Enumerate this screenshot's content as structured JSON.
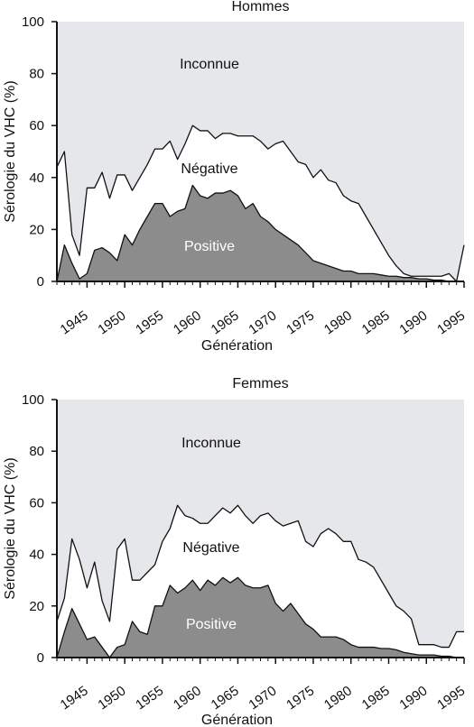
{
  "chart_data": [
    {
      "type": "area",
      "title": "Hommes",
      "xlabel": "Génération",
      "ylabel": "Sérologie du VHC (%)",
      "xlim": [
        1941,
        1995
      ],
      "ylim": [
        0,
        100
      ],
      "yticks": [
        0,
        20,
        40,
        60,
        80,
        100
      ],
      "xticks": [
        1945,
        1950,
        1955,
        1960,
        1965,
        1970,
        1975,
        1980,
        1985,
        1990,
        1995
      ],
      "grid": false,
      "area_labels": {
        "unknown": "Inconnue",
        "negative": "Négative",
        "positive": "Positive"
      },
      "colors": {
        "unknown": "#e6e7ea",
        "negative": "#ffffff",
        "positive": "#8c8c8c"
      },
      "series": [
        {
          "name": "Positive",
          "x": [
            1941,
            1942,
            1943,
            1944,
            1945,
            1946,
            1947,
            1948,
            1949,
            1950,
            1951,
            1952,
            1953,
            1954,
            1955,
            1956,
            1957,
            1958,
            1959,
            1960,
            1961,
            1962,
            1963,
            1964,
            1965,
            1966,
            1967,
            1968,
            1969,
            1970,
            1971,
            1972,
            1973,
            1974,
            1975,
            1976,
            1977,
            1978,
            1979,
            1980,
            1981,
            1982,
            1983,
            1984,
            1985,
            1986,
            1987,
            1988,
            1989,
            1990,
            1991,
            1992,
            1993,
            1994,
            1995
          ],
          "values": [
            0,
            14,
            7,
            1,
            3,
            12,
            13,
            11,
            8,
            18,
            14,
            20,
            25,
            30,
            30,
            25,
            27,
            28,
            37,
            33,
            32,
            34,
            34,
            35,
            33,
            28,
            30,
            25,
            23,
            20,
            18,
            16,
            14,
            11,
            8,
            7,
            6,
            5,
            4,
            4,
            3,
            3,
            3,
            2.5,
            2,
            2,
            1.5,
            1.5,
            1,
            1,
            0.5,
            0.5,
            0,
            0,
            0
          ]
        },
        {
          "name": "Positive+Négative",
          "x": [
            1941,
            1942,
            1943,
            1944,
            1945,
            1946,
            1947,
            1948,
            1949,
            1950,
            1951,
            1952,
            1953,
            1954,
            1955,
            1956,
            1957,
            1958,
            1959,
            1960,
            1961,
            1962,
            1963,
            1964,
            1965,
            1966,
            1967,
            1968,
            1969,
            1970,
            1971,
            1972,
            1973,
            1974,
            1975,
            1976,
            1977,
            1978,
            1979,
            1980,
            1981,
            1982,
            1983,
            1984,
            1985,
            1986,
            1987,
            1988,
            1989,
            1990,
            1991,
            1992,
            1993,
            1994,
            1995
          ],
          "values": [
            44,
            50,
            18,
            10,
            36,
            36,
            42,
            32,
            41,
            41,
            35,
            40,
            45,
            51,
            51,
            54,
            47,
            53,
            60,
            58,
            58,
            55,
            57,
            57,
            56,
            56,
            56,
            54,
            51,
            53,
            54,
            50,
            46,
            45,
            40,
            43,
            39,
            38,
            33,
            31,
            30,
            25,
            20,
            15,
            10,
            6,
            3,
            2,
            2,
            2,
            2,
            2,
            3,
            0,
            14
          ]
        }
      ]
    },
    {
      "type": "area",
      "title": "Femmes",
      "xlabel": "Génération",
      "ylabel": "Sérologie du VHC (%)",
      "xlim": [
        1941,
        1995
      ],
      "ylim": [
        0,
        100
      ],
      "yticks": [
        0,
        20,
        40,
        60,
        80,
        100
      ],
      "xticks": [
        1945,
        1950,
        1955,
        1960,
        1965,
        1970,
        1975,
        1980,
        1985,
        1990,
        1995
      ],
      "grid": false,
      "area_labels": {
        "unknown": "Inconnue",
        "negative": "Négative",
        "positive": "Positive"
      },
      "colors": {
        "unknown": "#e6e7ea",
        "negative": "#ffffff",
        "positive": "#8c8c8c"
      },
      "series": [
        {
          "name": "Positive",
          "x": [
            1941,
            1942,
            1943,
            1944,
            1945,
            1946,
            1947,
            1948,
            1949,
            1950,
            1951,
            1952,
            1953,
            1954,
            1955,
            1956,
            1957,
            1958,
            1959,
            1960,
            1961,
            1962,
            1963,
            1964,
            1965,
            1966,
            1967,
            1968,
            1969,
            1970,
            1971,
            1972,
            1973,
            1974,
            1975,
            1976,
            1977,
            1978,
            1979,
            1980,
            1981,
            1982,
            1983,
            1984,
            1985,
            1986,
            1987,
            1988,
            1989,
            1990,
            1991,
            1992,
            1993,
            1994,
            1995
          ],
          "values": [
            0,
            10,
            19,
            13,
            7,
            8,
            4,
            0,
            4,
            5,
            14,
            10,
            9,
            20,
            20,
            28,
            25,
            27,
            30,
            26,
            30,
            28,
            31,
            29,
            31,
            28,
            27,
            27,
            28,
            21,
            18,
            21,
            17,
            13,
            11,
            8,
            8,
            8,
            7,
            5,
            4,
            4,
            4,
            3.5,
            3.5,
            3,
            2,
            1.5,
            1,
            1,
            1,
            0.5,
            0.5,
            0,
            0
          ]
        },
        {
          "name": "Positive+Négative",
          "x": [
            1941,
            1942,
            1943,
            1944,
            1945,
            1946,
            1947,
            1948,
            1949,
            1950,
            1951,
            1952,
            1953,
            1954,
            1955,
            1956,
            1957,
            1958,
            1959,
            1960,
            1961,
            1962,
            1963,
            1964,
            1965,
            1966,
            1967,
            1968,
            1969,
            1970,
            1971,
            1972,
            1973,
            1974,
            1975,
            1976,
            1977,
            1978,
            1979,
            1980,
            1981,
            1982,
            1983,
            1984,
            1985,
            1986,
            1987,
            1988,
            1989,
            1990,
            1991,
            1992,
            1993,
            1994,
            1995
          ],
          "values": [
            14,
            23,
            46,
            38,
            27,
            37,
            22,
            14,
            42,
            46,
            30,
            30,
            33,
            36,
            45,
            50,
            59,
            55,
            54,
            52,
            52,
            55,
            58,
            56,
            59,
            55,
            52,
            55,
            56,
            53,
            51,
            52,
            53,
            45,
            43,
            48,
            50,
            48,
            45,
            45,
            38,
            37,
            35,
            30,
            25,
            20,
            18,
            15,
            5,
            5,
            5,
            4,
            4,
            10,
            10
          ]
        }
      ]
    }
  ]
}
